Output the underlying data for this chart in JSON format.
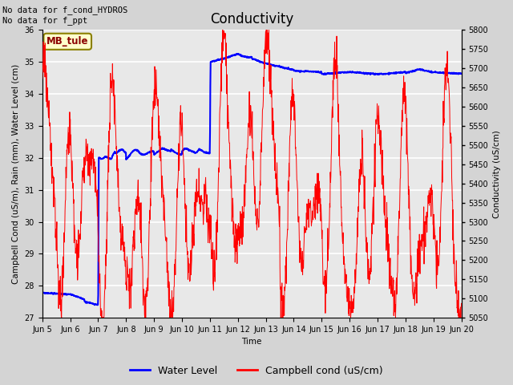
{
  "title": "Conductivity",
  "xlabel": "Time",
  "ylabel_left": "Campbell Cond (uS/m), Rain (mm), Water Level (cm)",
  "ylabel_right": "Conductivity (uS/cm)",
  "annotation_text": "No data for f_cond_HYDROS\nNo data for f_ppt",
  "legend_box_label": "MB_tule",
  "legend_entries": [
    "Water Level",
    "Campbell cond (uS/cm)"
  ],
  "ylim_left": [
    27.0,
    36.0
  ],
  "ylim_right": [
    5050,
    5800
  ],
  "background_color": "#d4d4d4",
  "plot_bg_color": "#e8e8e8",
  "title_fontsize": 12,
  "label_fontsize": 7.5,
  "tick_fontsize": 7
}
